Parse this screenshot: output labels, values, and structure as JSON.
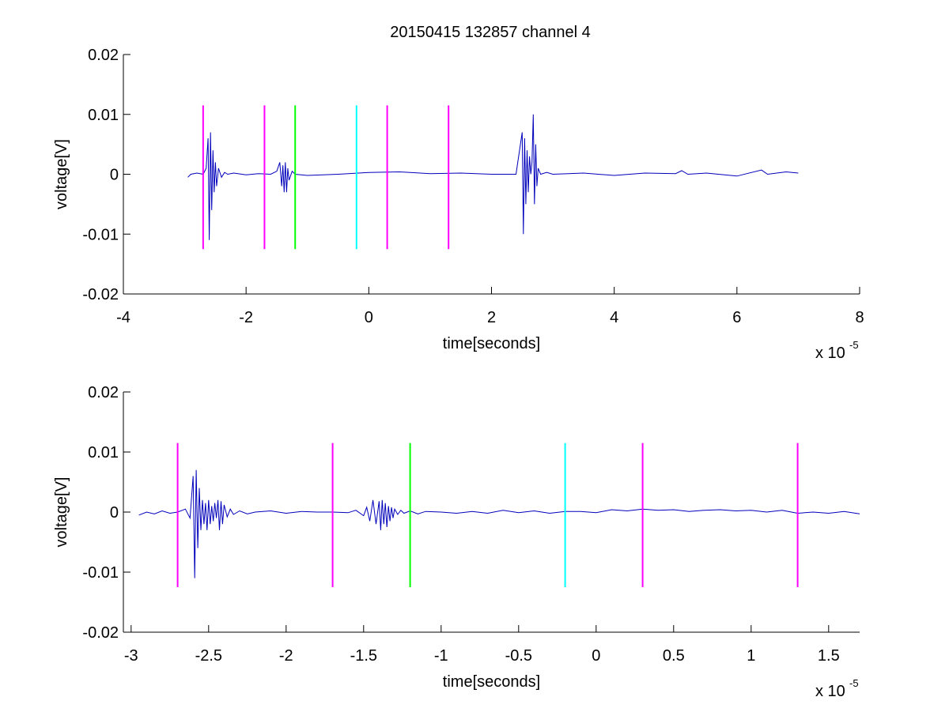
{
  "figure": {
    "title": "20150415 132857 channel 4"
  },
  "chart_data": [
    {
      "type": "line",
      "xlabel": "time[seconds]",
      "ylabel": "voltage[V]",
      "x_multiplier": "x 10",
      "x_exponent": "-5",
      "xlim": [
        -4,
        8
      ],
      "ylim": [
        -0.02,
        0.02
      ],
      "x_ticks": [
        -4,
        -2,
        0,
        2,
        4,
        6,
        8
      ],
      "x_tick_labels": [
        "-4",
        "-2",
        "0",
        "2",
        "4",
        "6",
        "8"
      ],
      "y_ticks": [
        0.02,
        0.01,
        0,
        -0.01,
        -0.02
      ],
      "y_tick_labels": [
        "0.02",
        "0.01",
        "0",
        "-0.01",
        "-0.02"
      ],
      "grid": false,
      "series": [
        {
          "color": "#0000bb",
          "x": [
            -2.95,
            -2.9,
            -2.8,
            -2.7,
            -2.65,
            -2.62,
            -2.6,
            -2.58,
            -2.56,
            -2.54,
            -2.52,
            -2.5,
            -2.48,
            -2.45,
            -2.4,
            -2.35,
            -2.3,
            -2.2,
            -2.0,
            -1.8,
            -1.6,
            -1.5,
            -1.45,
            -1.42,
            -1.4,
            -1.38,
            -1.36,
            -1.34,
            -1.32,
            -1.3,
            -1.25,
            -1.2,
            -1.0,
            -0.5,
            0.0,
            0.5,
            1.0,
            1.5,
            2.0,
            2.4,
            2.5,
            2.52,
            2.54,
            2.56,
            2.58,
            2.6,
            2.62,
            2.64,
            2.66,
            2.68,
            2.7,
            2.72,
            2.74,
            2.76,
            2.8,
            2.9,
            3.0,
            3.5,
            4.0,
            4.5,
            5.0,
            5.1,
            5.2,
            5.5,
            6.0,
            6.4,
            6.5,
            6.8,
            7.0
          ],
          "y": [
            -0.0005,
            0.0,
            0.0002,
            0.0,
            0.001,
            0.006,
            -0.011,
            0.007,
            -0.006,
            0.004,
            -0.003,
            0.002,
            -0.002,
            0.001,
            -0.0005,
            0.0003,
            0.0,
            0.0002,
            -0.0001,
            0.0001,
            0.0,
            0.0005,
            0.002,
            -0.002,
            0.0015,
            -0.003,
            0.002,
            -0.003,
            0.001,
            -0.001,
            0.0005,
            0.0,
            -0.0002,
            0.0,
            0.0003,
            0.0004,
            0.0001,
            0.0002,
            0.0,
            0.0,
            0.007,
            -0.01,
            0.006,
            -0.005,
            0.004,
            -0.003,
            0.003,
            0.0,
            0.002,
            0.01,
            -0.005,
            0.005,
            -0.002,
            0.001,
            0.0,
            0.0003,
            0.0,
            0.0002,
            -0.0002,
            0.0002,
            0.0001,
            0.0006,
            0.0,
            0.0002,
            -0.0003,
            0.0007,
            0.0,
            0.0004,
            0.0002
          ]
        }
      ],
      "markers": [
        {
          "x": -2.7,
          "color": "#ff00ff",
          "y_range": [
            -0.0125,
            0.0115
          ]
        },
        {
          "x": -1.7,
          "color": "#ff00ff",
          "y_range": [
            -0.0125,
            0.0115
          ]
        },
        {
          "x": -1.2,
          "color": "#00ff00",
          "y_range": [
            -0.0125,
            0.0115
          ]
        },
        {
          "x": -0.2,
          "color": "#00ffff",
          "y_range": [
            -0.0125,
            0.0115
          ]
        },
        {
          "x": 0.3,
          "color": "#ff00ff",
          "y_range": [
            -0.0125,
            0.0115
          ]
        },
        {
          "x": 1.3,
          "color": "#ff00ff",
          "y_range": [
            -0.0125,
            0.0115
          ]
        }
      ]
    },
    {
      "type": "line",
      "xlabel": "time[seconds]",
      "ylabel": "voltage[V]",
      "x_multiplier": "x 10",
      "x_exponent": "-5",
      "xlim": [
        -3.05,
        1.7
      ],
      "ylim": [
        -0.02,
        0.02
      ],
      "x_ticks": [
        -3,
        -2.5,
        -2,
        -1.5,
        -1,
        -0.5,
        0,
        0.5,
        1,
        1.5
      ],
      "x_tick_labels": [
        "-3",
        "-2.5",
        "-2",
        "-1.5",
        "-1",
        "-0.5",
        "0",
        "0.5",
        "1",
        "1.5"
      ],
      "y_ticks": [
        0.02,
        0.01,
        0,
        -0.01,
        -0.02
      ],
      "y_tick_labels": [
        "0.02",
        "0.01",
        "0",
        "-0.01",
        "-0.02"
      ],
      "grid": false,
      "series": [
        {
          "color": "#0000bb",
          "x": [
            -2.95,
            -2.9,
            -2.85,
            -2.8,
            -2.75,
            -2.7,
            -2.65,
            -2.62,
            -2.6,
            -2.59,
            -2.58,
            -2.57,
            -2.56,
            -2.55,
            -2.54,
            -2.53,
            -2.52,
            -2.51,
            -2.5,
            -2.49,
            -2.48,
            -2.47,
            -2.46,
            -2.45,
            -2.44,
            -2.43,
            -2.42,
            -2.41,
            -2.4,
            -2.38,
            -2.36,
            -2.34,
            -2.3,
            -2.25,
            -2.2,
            -2.1,
            -2.0,
            -1.9,
            -1.8,
            -1.7,
            -1.6,
            -1.55,
            -1.5,
            -1.48,
            -1.46,
            -1.44,
            -1.42,
            -1.4,
            -1.39,
            -1.38,
            -1.37,
            -1.36,
            -1.35,
            -1.34,
            -1.33,
            -1.32,
            -1.31,
            -1.3,
            -1.28,
            -1.26,
            -1.24,
            -1.2,
            -1.15,
            -1.1,
            -1.0,
            -0.9,
            -0.8,
            -0.7,
            -0.6,
            -0.5,
            -0.4,
            -0.3,
            -0.2,
            -0.1,
            0.0,
            0.1,
            0.2,
            0.3,
            0.4,
            0.5,
            0.6,
            0.7,
            0.8,
            0.9,
            1.0,
            1.1,
            1.2,
            1.3,
            1.4,
            1.5,
            1.6,
            1.7
          ],
          "y": [
            -0.0005,
            0.0,
            -0.0003,
            0.0002,
            -0.0002,
            0.0,
            0.0005,
            -0.001,
            0.006,
            -0.011,
            0.007,
            -0.006,
            0.004,
            -0.003,
            0.002,
            -0.002,
            0.0015,
            -0.003,
            0.002,
            -0.002,
            0.001,
            -0.0015,
            0.0015,
            -0.001,
            0.002,
            -0.003,
            0.0018,
            -0.002,
            0.0012,
            -0.0008,
            0.0005,
            -0.0004,
            0.0002,
            -0.0003,
            0.0,
            0.0002,
            -0.0002,
            0.0001,
            0.0,
            0.0,
            -0.0001,
            0.0003,
            -0.0006,
            0.0008,
            -0.0015,
            0.002,
            -0.002,
            0.0018,
            -0.003,
            0.002,
            -0.002,
            0.0015,
            -0.0025,
            0.001,
            -0.0015,
            0.0008,
            -0.001,
            0.0005,
            -0.0004,
            0.0003,
            -0.0002,
            0.0002,
            -0.0003,
            0.0001,
            0.0,
            -0.0002,
            0.0001,
            -0.0002,
            0.0003,
            -0.0001,
            0.0002,
            -0.0002,
            0.0001,
            0.0001,
            -0.0001,
            0.0004,
            0.0002,
            0.0005,
            0.0003,
            0.0004,
            0.0001,
            0.0003,
            0.0004,
            0.0002,
            0.0003,
            0.0,
            0.0003,
            -0.0002,
            0.0,
            -0.0002,
            0.0001,
            -0.0003
          ]
        }
      ],
      "markers": [
        {
          "x": -2.7,
          "color": "#ff00ff",
          "y_range": [
            -0.0125,
            0.0115
          ]
        },
        {
          "x": -1.7,
          "color": "#ff00ff",
          "y_range": [
            -0.0125,
            0.0115
          ]
        },
        {
          "x": -1.2,
          "color": "#00ff00",
          "y_range": [
            -0.0125,
            0.0115
          ]
        },
        {
          "x": -0.2,
          "color": "#00ffff",
          "y_range": [
            -0.0125,
            0.0115
          ]
        },
        {
          "x": 0.3,
          "color": "#ff00ff",
          "y_range": [
            -0.0125,
            0.0115
          ]
        },
        {
          "x": 1.3,
          "color": "#ff00ff",
          "y_range": [
            -0.0125,
            0.0115
          ]
        }
      ]
    }
  ]
}
